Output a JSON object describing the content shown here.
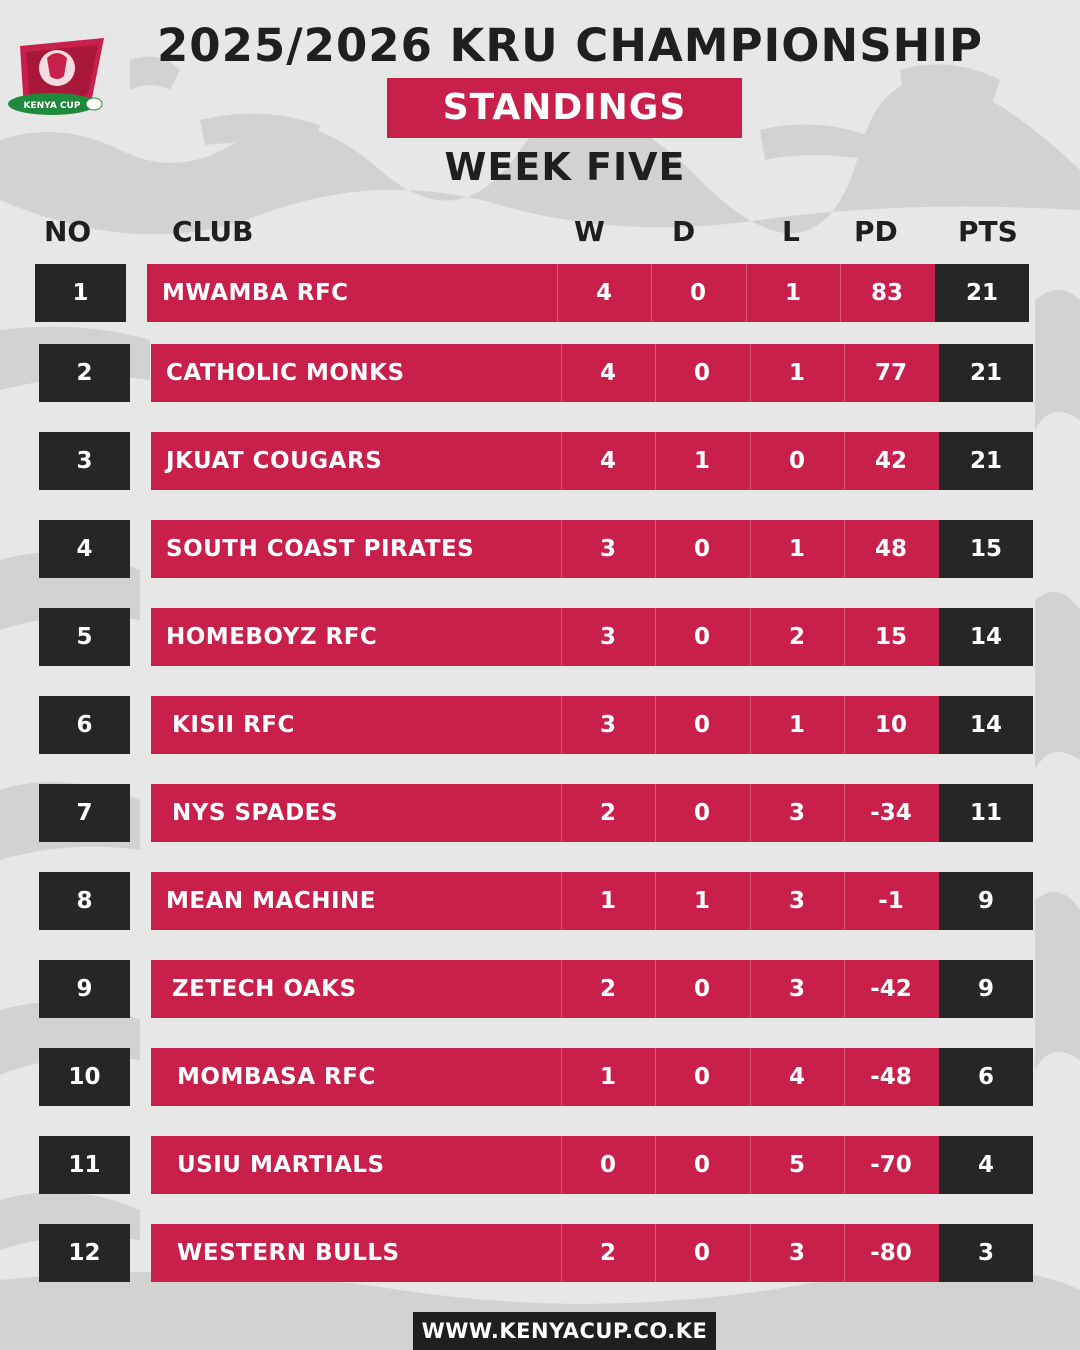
{
  "header": {
    "title": "2025/2026 KRU CHAMPIONSHIP",
    "subtitle": "STANDINGS",
    "week": "WEEK FIVE",
    "logo_text": "KENYA CUP"
  },
  "colors": {
    "accent": "#c8204a",
    "dark": "#262626",
    "background": "#e7e7e7"
  },
  "table": {
    "columns": [
      "NO",
      "CLUB",
      "W",
      "D",
      "L",
      "PD",
      "PTS"
    ],
    "rows": [
      {
        "no": "1",
        "club": "MWAMBA RFC",
        "w": "4",
        "d": "0",
        "l": "1",
        "pd": "83",
        "pts": "21"
      },
      {
        "no": "2",
        "club": "CATHOLIC MONKS",
        "w": "4",
        "d": "0",
        "l": "1",
        "pd": "77",
        "pts": "21"
      },
      {
        "no": "3",
        "club": "JKUAT COUGARS",
        "w": "4",
        "d": "1",
        "l": "0",
        "pd": "42",
        "pts": "21"
      },
      {
        "no": "4",
        "club": "SOUTH COAST PIRATES",
        "w": "3",
        "d": "0",
        "l": "1",
        "pd": "48",
        "pts": "15"
      },
      {
        "no": "5",
        "club": "HOMEBOYZ RFC",
        "w": "3",
        "d": "0",
        "l": "2",
        "pd": "15",
        "pts": "14"
      },
      {
        "no": "6",
        "club": "KISII RFC",
        "w": "3",
        "d": "0",
        "l": "1",
        "pd": "10",
        "pts": "14"
      },
      {
        "no": "7",
        "club": "NYS SPADES",
        "w": "2",
        "d": "0",
        "l": "3",
        "pd": "-34",
        "pts": "11"
      },
      {
        "no": "8",
        "club": "MEAN MACHINE",
        "w": "1",
        "d": "1",
        "l": "3",
        "pd": "-1",
        "pts": "9"
      },
      {
        "no": "9",
        "club": "ZETECH OAKS",
        "w": "2",
        "d": "0",
        "l": "3",
        "pd": "-42",
        "pts": "9"
      },
      {
        "no": "10",
        "club": "MOMBASA RFC",
        "w": "1",
        "d": "0",
        "l": "4",
        "pd": "-48",
        "pts": "6"
      },
      {
        "no": "11",
        "club": "USIU MARTIALS",
        "w": "0",
        "d": "0",
        "l": "5",
        "pd": "-70",
        "pts": "4"
      },
      {
        "no": "12",
        "club": "WESTERN BULLS",
        "w": "2",
        "d": "0",
        "l": "3",
        "pd": "-80",
        "pts": "3"
      }
    ]
  },
  "footer": {
    "url": "WWW.KENYACUP.CO.KE"
  }
}
